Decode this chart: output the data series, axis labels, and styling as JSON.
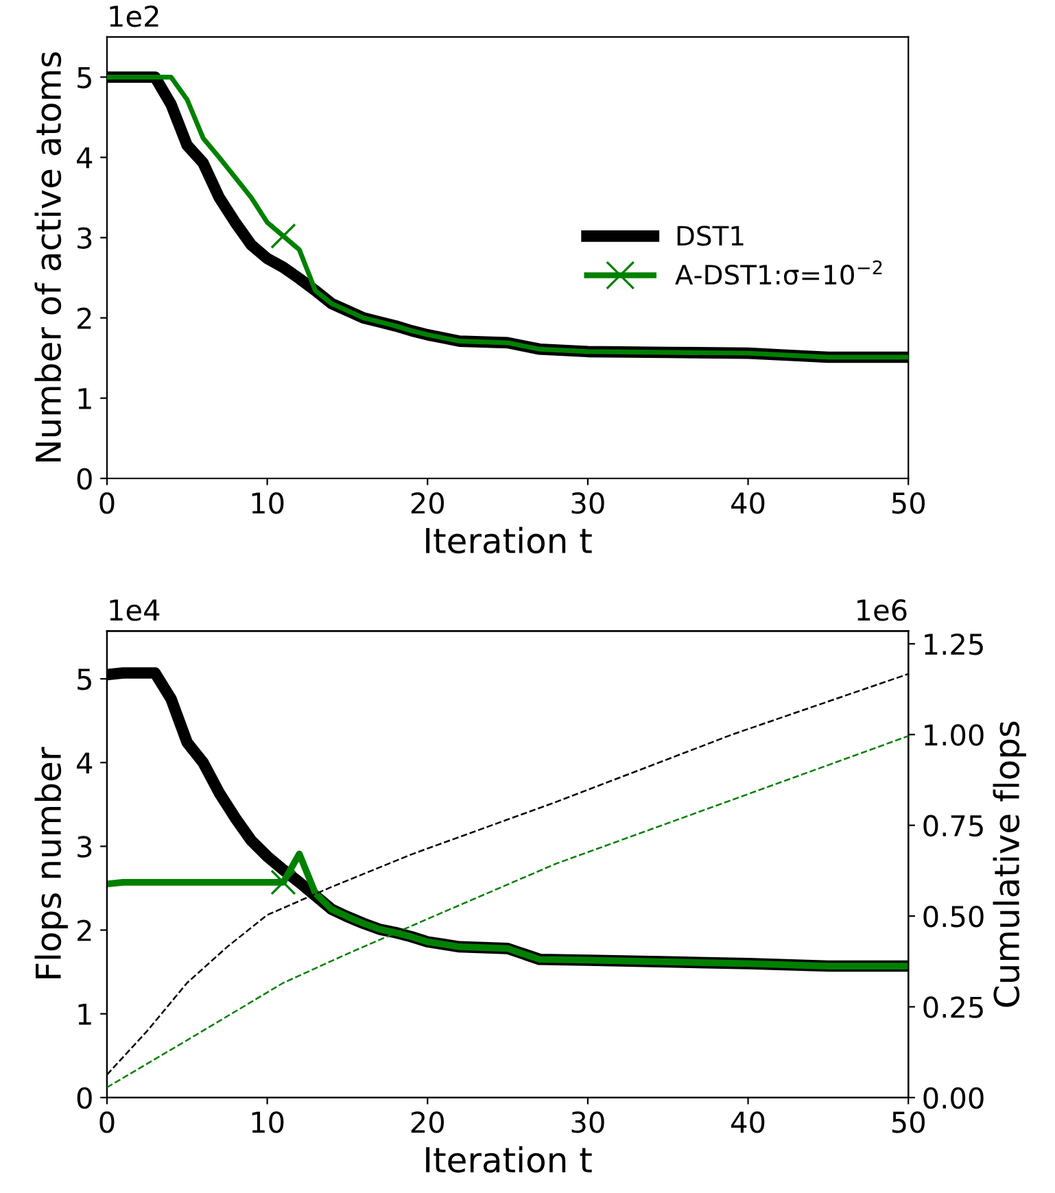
{
  "chart_data": [
    {
      "type": "line",
      "xlabel": "Iteration t",
      "ylabel": "Number of active atoms",
      "annotations": [
        "1e2"
      ],
      "x": [
        0,
        1,
        2,
        3,
        4,
        5,
        6,
        7,
        8,
        9,
        10,
        11,
        12,
        13,
        14,
        15,
        16,
        17,
        18,
        19,
        20,
        21,
        22,
        25,
        26,
        27,
        30,
        35,
        40,
        42,
        45,
        50
      ],
      "xlim": [
        0,
        50
      ],
      "xticks": [
        0,
        10,
        20,
        30,
        40,
        50
      ],
      "ylim": [
        0,
        5.5
      ],
      "yticks": [
        0,
        1,
        2,
        3,
        4,
        5
      ],
      "legend": "center right",
      "series": [
        {
          "name": "DST1",
          "color": "#000000",
          "values": [
            5.0,
            5.0,
            5.0,
            5.0,
            4.66,
            4.15,
            3.93,
            3.5,
            3.19,
            2.91,
            2.74,
            2.63,
            2.49,
            2.34,
            2.18,
            2.09,
            2.0,
            1.95,
            1.9,
            1.84,
            1.79,
            1.75,
            1.71,
            1.69,
            1.65,
            1.61,
            1.58,
            1.57,
            1.56,
            1.54,
            1.51,
            1.51
          ]
        },
        {
          "name": "A-DST1:σ=10$^{−2}$",
          "color": "#008000",
          "values": [
            5.0,
            5.0,
            5.0,
            5.0,
            5.0,
            4.72,
            4.24,
            4.0,
            3.75,
            3.5,
            3.19,
            3.02,
            2.85,
            2.34,
            2.18,
            2.09,
            2.0,
            1.95,
            1.9,
            1.84,
            1.79,
            1.75,
            1.71,
            1.69,
            1.65,
            1.61,
            1.58,
            1.57,
            1.56,
            1.54,
            1.51,
            1.51
          ]
        },
        {
          "type": "scatter",
          "color": "#008000",
          "marker": "cross",
          "x": [
            11
          ],
          "values": [
            3.02
          ]
        }
      ]
    },
    {
      "type": "line",
      "xlabel": "Iteration t",
      "ylabel": "Flops number",
      "y2label": "Cumulative flops",
      "annotations": [
        "1e4",
        "1e6"
      ],
      "x": [
        0,
        1,
        2,
        3,
        4,
        5,
        6,
        7,
        8,
        9,
        10,
        11,
        12,
        13,
        14,
        15,
        16,
        17,
        18,
        19,
        20,
        21,
        22,
        25,
        27,
        30,
        35,
        40,
        45,
        50
      ],
      "xlim": [
        0,
        50
      ],
      "xticks": [
        0,
        10,
        20,
        30,
        40,
        50
      ],
      "ylim": [
        0,
        5.57
      ],
      "yticks": [
        0,
        1,
        2,
        3,
        4,
        5
      ],
      "y2lim": [
        0,
        1.285
      ],
      "y2ticks": [
        {
          "value": 0,
          "label": "0.00"
        },
        0.25,
        {
          "value": 0.5,
          "label": "0.50"
        },
        0.75,
        {
          "value": 1,
          "label": "1.00"
        },
        1.25
      ],
      "series": [
        {
          "color": "#000000",
          "values": [
            5.05,
            5.07,
            5.07,
            5.07,
            4.76,
            4.24,
            4.0,
            3.64,
            3.34,
            3.07,
            2.88,
            2.72,
            2.57,
            2.41,
            2.25,
            2.16,
            2.08,
            2.01,
            1.97,
            1.92,
            1.86,
            1.83,
            1.8,
            1.78,
            1.65,
            1.64,
            1.62,
            1.6,
            1.57,
            1.57
          ]
        },
        {
          "color": "#008000",
          "values": [
            2.55,
            2.57,
            2.57,
            2.57,
            2.57,
            2.57,
            2.57,
            2.57,
            2.57,
            2.57,
            2.57,
            2.57,
            2.91,
            2.44,
            2.25,
            2.16,
            2.08,
            2.01,
            1.97,
            1.92,
            1.86,
            1.83,
            1.8,
            1.78,
            1.65,
            1.64,
            1.62,
            1.6,
            1.57,
            1.57
          ]
        },
        {
          "type": "scatter",
          "color": "#008000",
          "marker": "cross",
          "x": [
            11
          ],
          "values": [
            2.57
          ]
        },
        {
          "color": "#000000",
          "axis": "y2",
          "line_style": "dashed",
          "x": [
            0,
            2.5,
            5,
            7.5,
            10,
            14,
            19,
            28,
            39,
            50
          ],
          "values": [
            0.063,
            0.183,
            0.316,
            0.415,
            0.503,
            0.58,
            0.67,
            0.814,
            1.0,
            1.167
          ]
        },
        {
          "color": "#008000",
          "axis": "y2",
          "line_style": "dashed",
          "x": [
            0,
            5,
            11,
            15,
            20,
            28,
            39,
            50
          ],
          "values": [
            0.028,
            0.158,
            0.316,
            0.396,
            0.492,
            0.644,
            0.82,
            0.996
          ]
        }
      ]
    }
  ]
}
